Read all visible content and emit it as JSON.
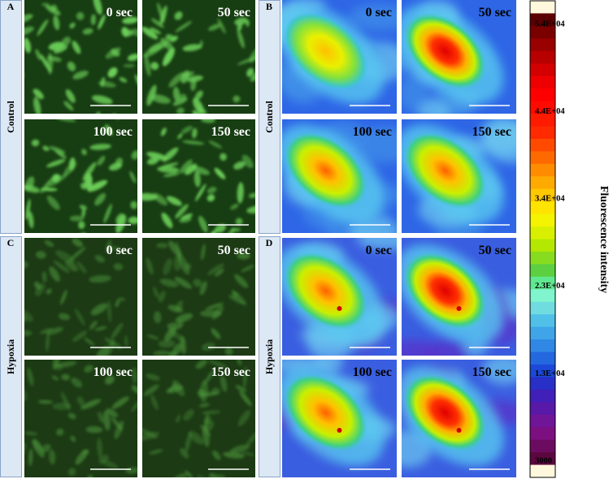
{
  "panels": [
    {
      "label": "A",
      "row_label": "Control",
      "images": [
        "0 sec",
        "50 sec",
        "100 sec",
        "150 sec"
      ]
    },
    {
      "label": "B",
      "row_label": "Control",
      "images": [
        "0 sec",
        "50 sec",
        "100 sec",
        "150 sec"
      ]
    },
    {
      "label": "C",
      "row_label": "Hypoxia",
      "images": [
        "0 sec",
        "50 sec",
        "100 sec",
        "150 sec"
      ]
    },
    {
      "label": "D",
      "row_label": "Hypoxia",
      "images": [
        "0 sec",
        "50 sec",
        "100 sec",
        "150 sec"
      ]
    }
  ],
  "colorbar": {
    "title": "Fluorescence intensity",
    "ticks": [
      "5.4E+04",
      "4.4E+04",
      "3.4E+04",
      "2.3E+04",
      "1.3E+04",
      "3000"
    ],
    "colors": [
      "#fff8dc",
      "#5a0000",
      "#7a0000",
      "#990000",
      "#b80000",
      "#d40000",
      "#ee0000",
      "#ff0000",
      "#ff0a00",
      "#ff1a00",
      "#ff2a00",
      "#ff4a00",
      "#ff6a00",
      "#ff8c00",
      "#ffaa00",
      "#ffc800",
      "#ffe400",
      "#f4f400",
      "#d8f000",
      "#b4e800",
      "#88dc20",
      "#5cd040",
      "#60e890",
      "#80f4cc",
      "#70dce0",
      "#50c0e8",
      "#40a4e8",
      "#3088e4",
      "#2468e0",
      "#1c48d8",
      "#2830c8",
      "#4020b8",
      "#5818a8",
      "#701498",
      "#7c1080",
      "#6c0c60",
      "#5c0840",
      "#fff8dc"
    ]
  }
}
